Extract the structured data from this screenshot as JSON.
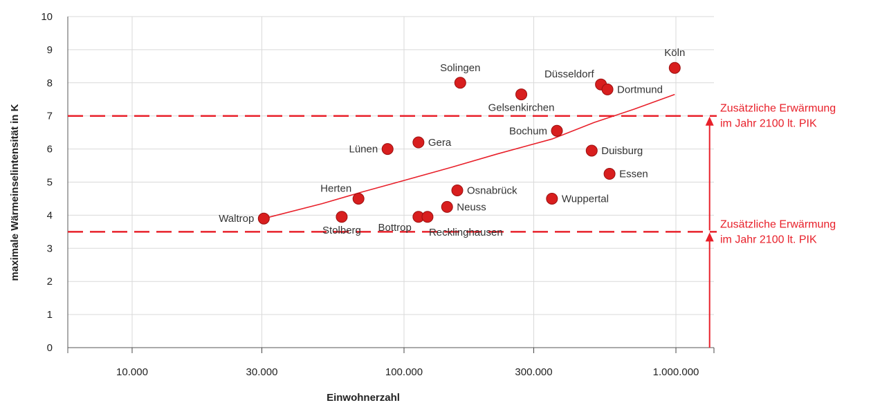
{
  "chart_data": {
    "type": "scatter",
    "title": "",
    "xlabel": "Einwohnerzahl",
    "ylabel": "maximale Wärmeinselintensität in K",
    "xscale": "log",
    "xlim": [
      5800,
      1380000
    ],
    "ylim": [
      0,
      10
    ],
    "grid": true,
    "xticks": [
      {
        "value": 10000,
        "label": "10.000"
      },
      {
        "value": 30000,
        "label": "30.000"
      },
      {
        "value": 100000,
        "label": "100.000"
      },
      {
        "value": 300000,
        "label": "300.000"
      },
      {
        "value": 1000000,
        "label": "1.000.000"
      }
    ],
    "yticks": [
      {
        "value": 0,
        "label": "0"
      },
      {
        "value": 1,
        "label": "1"
      },
      {
        "value": 2,
        "label": "2"
      },
      {
        "value": 3,
        "label": "3"
      },
      {
        "value": 4,
        "label": "4"
      },
      {
        "value": 5,
        "label": "5"
      },
      {
        "value": 6,
        "label": "6"
      },
      {
        "value": 7,
        "label": "7"
      },
      {
        "value": 8,
        "label": "8"
      },
      {
        "value": 9,
        "label": "9"
      },
      {
        "value": 10,
        "label": "10"
      }
    ],
    "points": [
      {
        "name": "Waltrop",
        "x": 30500,
        "y": 3.9,
        "label_pos": "left"
      },
      {
        "name": "Stolberg",
        "x": 59000,
        "y": 3.95,
        "label_pos": "below"
      },
      {
        "name": "Herten",
        "x": 68000,
        "y": 4.5,
        "label_pos": "above-left"
      },
      {
        "name": "Lünen",
        "x": 87000,
        "y": 6.0,
        "label_pos": "left"
      },
      {
        "name": "Gera",
        "x": 113000,
        "y": 6.2,
        "label_pos": "right"
      },
      {
        "name": "Bottrop",
        "x": 113000,
        "y": 3.95,
        "label_pos": "below-left"
      },
      {
        "name": "Recklinghausen",
        "x": 122000,
        "y": 3.95,
        "label_pos": "below-right"
      },
      {
        "name": "Neuss",
        "x": 144000,
        "y": 4.25,
        "label_pos": "right"
      },
      {
        "name": "Osnabrück",
        "x": 157000,
        "y": 4.75,
        "label_pos": "right"
      },
      {
        "name": "Solingen",
        "x": 161000,
        "y": 8.0,
        "label_pos": "above"
      },
      {
        "name": "Gelsenkirchen",
        "x": 270000,
        "y": 7.65,
        "label_pos": "below"
      },
      {
        "name": "Bochum",
        "x": 365000,
        "y": 6.55,
        "label_pos": "left"
      },
      {
        "name": "Wuppertal",
        "x": 350000,
        "y": 4.5,
        "label_pos": "right"
      },
      {
        "name": "Duisburg",
        "x": 490000,
        "y": 5.95,
        "label_pos": "right"
      },
      {
        "name": "Essen",
        "x": 570000,
        "y": 5.25,
        "label_pos": "right"
      },
      {
        "name": "Düsseldorf",
        "x": 530000,
        "y": 7.95,
        "label_pos": "above-left"
      },
      {
        "name": "Dortmund",
        "x": 560000,
        "y": 7.8,
        "label_pos": "right"
      },
      {
        "name": "Köln",
        "x": 990000,
        "y": 8.45,
        "label_pos": "above"
      }
    ],
    "trendline": [
      {
        "x": 30500,
        "y": 3.9
      },
      {
        "x": 50000,
        "y": 4.35
      },
      {
        "x": 70000,
        "y": 4.7
      },
      {
        "x": 100000,
        "y": 5.05
      },
      {
        "x": 150000,
        "y": 5.45
      },
      {
        "x": 220000,
        "y": 5.85
      },
      {
        "x": 350000,
        "y": 6.3
      },
      {
        "x": 500000,
        "y": 6.8
      },
      {
        "x": 700000,
        "y": 7.2
      },
      {
        "x": 990000,
        "y": 7.65
      }
    ],
    "reference_lines": [
      {
        "y": 7.0,
        "label_line1": "Zusätzliche Erwärmung",
        "label_line2": "im Jahr 2100 lt. PIK"
      },
      {
        "y": 3.5,
        "label_line1": "Zusätzliche Erwärmung",
        "label_line2": "im Jahr 2100 lt. PIK"
      }
    ],
    "arrow_x": 1330000,
    "colors": {
      "points": "#d81e1e",
      "trendline": "#e8202a",
      "reference": "#e8202a",
      "annotation": "#e8202a",
      "grid": "#d9d9d9"
    }
  }
}
